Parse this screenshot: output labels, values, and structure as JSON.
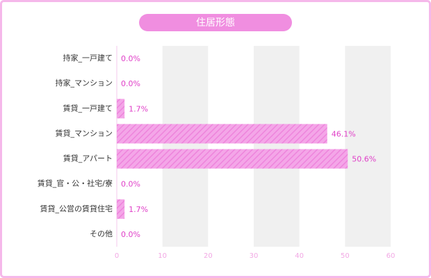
{
  "chart_data": {
    "type": "bar",
    "orientation": "horizontal",
    "title": "住居形態",
    "categories": [
      "持家_一戸建て",
      "持家_マンション",
      "賃貸_一戸建て",
      "賃貸_マンション",
      "賃貸_アパート",
      "賃貸_官・公・社宅/寮",
      "賃貸_公営の賃貸住宅",
      "その他"
    ],
    "values": [
      0.0,
      0.0,
      1.7,
      46.1,
      50.6,
      0.0,
      1.7,
      0.0
    ],
    "value_labels": [
      "0.0%",
      "0.0%",
      "1.7%",
      "46.1%",
      "50.6%",
      "0.0%",
      "1.7%",
      "0.0%"
    ],
    "color": "#f08ee0",
    "xlim": [
      0,
      60
    ],
    "xticks": [
      0,
      10,
      20,
      30,
      40,
      50,
      60
    ]
  }
}
